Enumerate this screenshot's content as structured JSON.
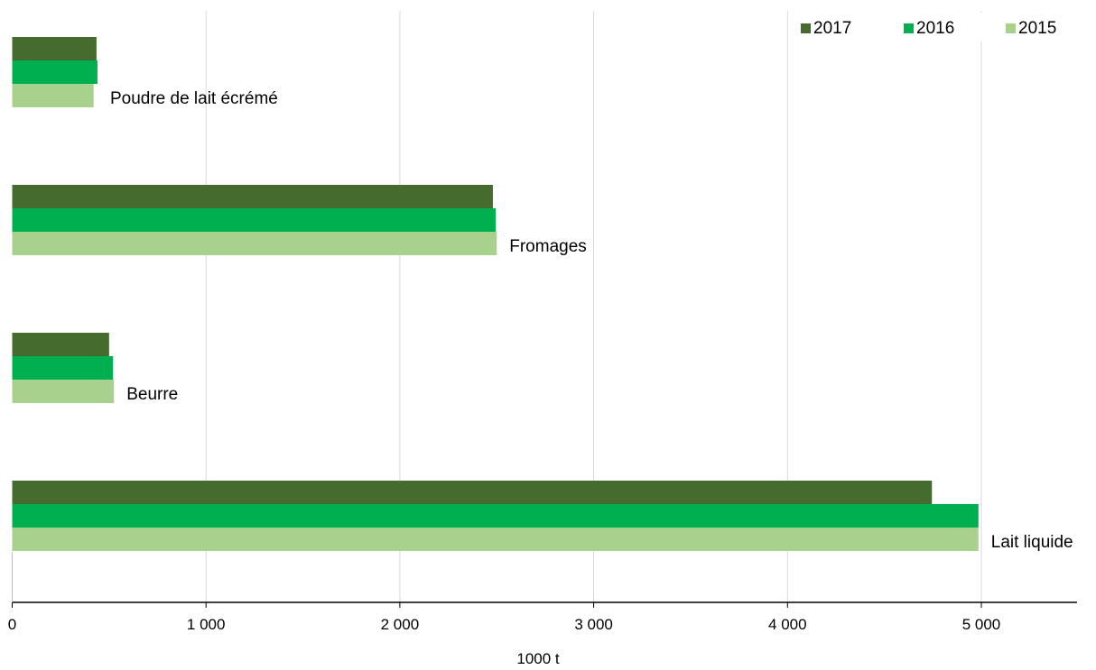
{
  "chart_data": {
    "type": "bar",
    "orientation": "horizontal",
    "categories": [
      "Poudre de lait écrémé",
      "Fromages",
      "Beurre",
      "Lait liquide"
    ],
    "series": [
      {
        "name": "2017",
        "color": "#456b2e",
        "values": [
          435,
          2480,
          500,
          4745
        ]
      },
      {
        "name": "2016",
        "color": "#00b050",
        "values": [
          440,
          2495,
          520,
          4985
        ]
      },
      {
        "name": "2015",
        "color": "#a9d18e",
        "values": [
          420,
          2500,
          525,
          4985
        ]
      }
    ],
    "xlim": [
      0,
      5500
    ],
    "xticks": [
      {
        "value": 0,
        "label": "0"
      },
      {
        "value": 1000,
        "label": "1 000"
      },
      {
        "value": 2000,
        "label": "2 000"
      },
      {
        "value": 3000,
        "label": "3 000"
      },
      {
        "value": 4000,
        "label": "4 000"
      },
      {
        "value": 5000,
        "label": "5 000"
      }
    ],
    "xlabel": "1000 t",
    "ylabel": "",
    "title": "",
    "grid": "vertical",
    "legend": {
      "position": "top-right",
      "order": [
        "2017",
        "2016",
        "2015"
      ]
    },
    "colors": {
      "gridline": "#d9d9d9",
      "axis": "#000000"
    }
  }
}
